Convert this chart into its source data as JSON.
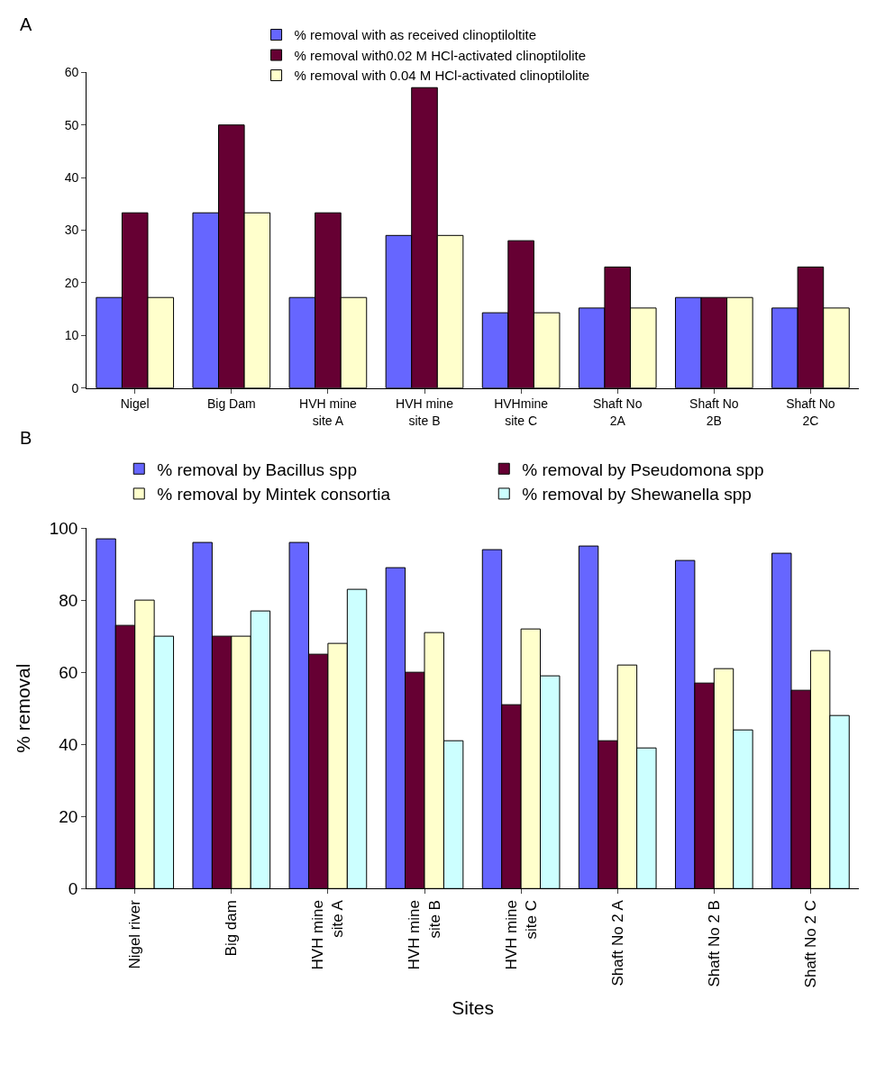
{
  "chart_data": [
    {
      "type": "bar",
      "annotations": [
        "A"
      ],
      "categories": [
        "Nigel",
        "Big Dam",
        "HVH mine\nsite A",
        "HVH mine\nsite B",
        "HVHmine\nsite C",
        "Shaft No\n2A",
        "Shaft No\n2B",
        "Shaft No\n2C"
      ],
      "series": [
        {
          "name": "% removal with as received clinoptiloltite",
          "color": "#6666ff",
          "values": [
            17.2,
            33.3,
            17.2,
            29,
            14.3,
            15.2,
            17.2,
            15.2
          ]
        },
        {
          "name": "% removal with0.02 M HCl-activated clinoptilolite",
          "color": "#660033",
          "values": [
            33.3,
            50,
            33.3,
            57.1,
            28,
            23,
            17.2,
            23
          ]
        },
        {
          "name": "% removal with 0.04 M HCl-activated clinoptilolite",
          "color": "#ffffcc",
          "values": [
            17.2,
            33.3,
            17.2,
            29,
            14.3,
            15.2,
            17.2,
            15.2
          ]
        }
      ],
      "ylim": [
        0,
        60
      ],
      "yticks": [
        0,
        10,
        20,
        30,
        40,
        50,
        60
      ],
      "legend": "top"
    },
    {
      "type": "bar",
      "annotations": [
        "B"
      ],
      "xlabel": "Sites",
      "ylabel": "% removal",
      "categories": [
        "Nigel river",
        "Big dam",
        "HVH mine\nsite A",
        "HVH mine\nsite B",
        "HVH mine\nsite C",
        "Shaft No 2 A",
        "Shaft No 2 B",
        "Shaft No 2 C"
      ],
      "series": [
        {
          "name": "% removal by Bacillus spp",
          "color": "#6666ff",
          "values": [
            97,
            96,
            96,
            89,
            94,
            95,
            91,
            93
          ]
        },
        {
          "name": "% removal by Pseudomona spp",
          "color": "#660033",
          "values": [
            73,
            70,
            65,
            60,
            51,
            41,
            57,
            55
          ]
        },
        {
          "name": "% removal by Mintek consortia",
          "color": "#ffffcc",
          "values": [
            80,
            70,
            68,
            71,
            72,
            62,
            61,
            66
          ]
        },
        {
          "name": "% removal by Shewanella spp",
          "color": "#ccffff",
          "values": [
            70,
            77,
            83,
            41,
            59,
            39,
            44,
            48
          ]
        }
      ],
      "ylim": [
        0,
        100
      ],
      "yticks": [
        0,
        20,
        40,
        60,
        80,
        100
      ],
      "legend": "top"
    }
  ]
}
